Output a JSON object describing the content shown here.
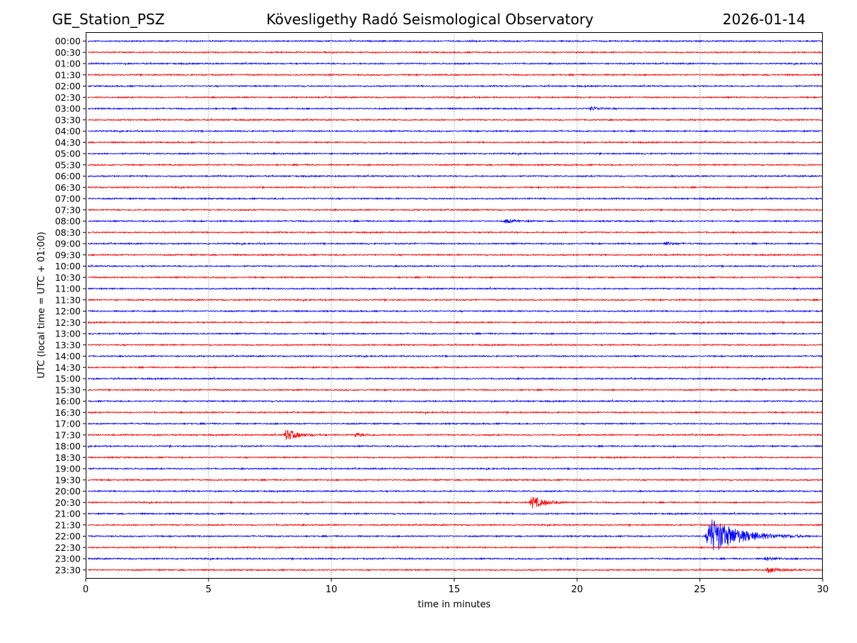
{
  "header": {
    "station": "GE_Station_PSZ",
    "observatory": "Kövesligethy Radó Seismological Observatory",
    "date": "2026-01-14"
  },
  "chart_data": {
    "type": "line",
    "title": "Kövesligethy Radó Seismological Observatory",
    "xlabel": "time in minutes",
    "ylabel": "UTC (local time = UTC + 01:00)",
    "xlim": [
      0,
      30
    ],
    "x_ticks": [
      "0",
      "5",
      "10",
      "15",
      "20",
      "25",
      "30"
    ],
    "grid": "vertical dotted lines at 5-minute ticks",
    "trace_colors": [
      "#0000ff",
      "#ff0000"
    ],
    "rows": [
      "00:00",
      "00:30",
      "01:00",
      "01:30",
      "02:00",
      "02:30",
      "03:00",
      "03:30",
      "04:00",
      "04:30",
      "05:00",
      "05:30",
      "06:00",
      "06:30",
      "07:00",
      "07:30",
      "08:00",
      "08:30",
      "09:00",
      "09:30",
      "10:00",
      "10:30",
      "11:00",
      "11:30",
      "12:00",
      "12:30",
      "13:00",
      "13:30",
      "14:00",
      "14:30",
      "15:00",
      "15:30",
      "16:00",
      "16:30",
      "17:00",
      "17:30",
      "18:00",
      "18:30",
      "19:00",
      "19:30",
      "20:00",
      "20:30",
      "21:00",
      "21:30",
      "22:00",
      "22:30",
      "23:00",
      "23:30"
    ],
    "events": [
      {
        "row": "03:00",
        "start_min": 20.5,
        "end_min": 21.8,
        "peak_rel": 0.8
      },
      {
        "row": "08:00",
        "start_min": 17.0,
        "end_min": 18.5,
        "peak_rel": 0.8
      },
      {
        "row": "09:00",
        "start_min": 23.5,
        "end_min": 24.8,
        "peak_rel": 0.8
      },
      {
        "row": "17:30",
        "start_min": 8.05,
        "end_min": 9.8,
        "peak_rel": 2.6
      },
      {
        "row": "17:30",
        "start_min": 10.9,
        "end_min": 12.2,
        "peak_rel": 0.9
      },
      {
        "row": "20:30",
        "start_min": 18.05,
        "end_min": 20.0,
        "peak_rel": 2.6
      },
      {
        "row": "22:00",
        "start_min": 25.2,
        "end_min": 29.5,
        "peak_rel": 8.0
      },
      {
        "row": "23:00",
        "start_min": 27.6,
        "end_min": 29.2,
        "peak_rel": 0.8
      },
      {
        "row": "23:30",
        "start_min": 27.7,
        "end_min": 29.3,
        "peak_rel": 1.4
      }
    ]
  }
}
